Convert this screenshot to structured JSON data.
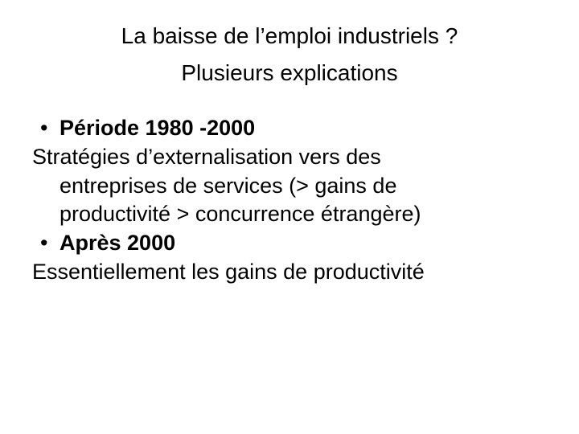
{
  "background_color": "#ffffff",
  "text_color": "#000000",
  "font_family": "Arial, Helvetica, sans-serif",
  "title": {
    "line1": "La baisse de l’emploi industriels ?",
    "line2": "Plusieurs explications",
    "fontsize": 28,
    "align": "center"
  },
  "body": {
    "fontsize": 27,
    "bullets": [
      {
        "label": "Période 1980 -2000",
        "text_lines": [
          "Stratégies d’externalisation vers des",
          "entreprises de services (> gains de",
          "productivité > concurrence étrangère)"
        ]
      },
      {
        "label": "Après 2000",
        "text_lines": [
          "Essentiellement les gains de productivité"
        ]
      }
    ]
  }
}
